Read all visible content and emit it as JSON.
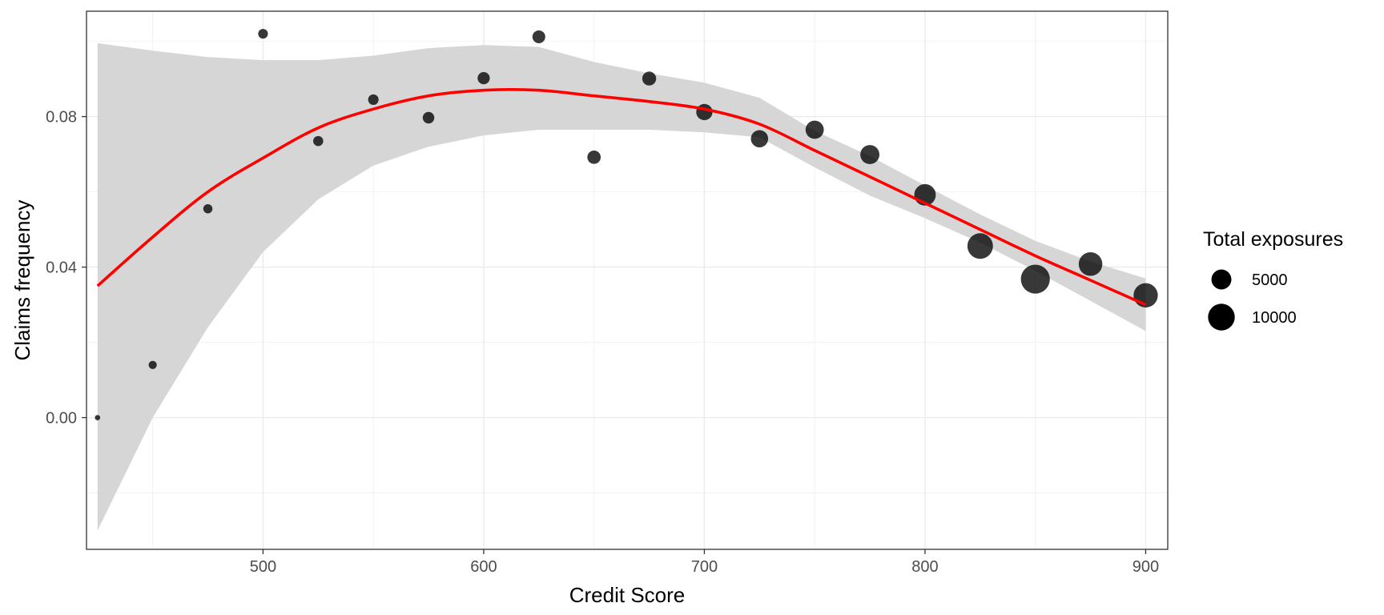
{
  "chart_data": {
    "type": "scatter",
    "title": "",
    "xlabel": "Credit Score",
    "ylabel": "Claims frequency",
    "xlim": [
      420,
      910
    ],
    "ylim": [
      -0.035,
      0.108
    ],
    "x_ticks": [
      500,
      600,
      700,
      800,
      900
    ],
    "x_tick_labels": [
      "500",
      "600",
      "700",
      "800",
      "900"
    ],
    "y_ticks": [
      0.0,
      0.04,
      0.08
    ],
    "y_tick_labels": [
      "0.00",
      "0.04",
      "0.08"
    ],
    "grid": true,
    "legend": {
      "title": "Total exposures",
      "position": "right",
      "entries": [
        {
          "label": "5000",
          "value": 5000
        },
        {
          "label": "10000",
          "value": 10000
        }
      ]
    },
    "points": [
      {
        "x": 425,
        "y": 0.0,
        "size": 60
      },
      {
        "x": 450,
        "y": 0.014,
        "size": 400
      },
      {
        "x": 475,
        "y": 0.0555,
        "size": 600
      },
      {
        "x": 500,
        "y": 0.102,
        "size": 700
      },
      {
        "x": 525,
        "y": 0.0735,
        "size": 800
      },
      {
        "x": 550,
        "y": 0.0845,
        "size": 900
      },
      {
        "x": 575,
        "y": 0.0797,
        "size": 1200
      },
      {
        "x": 600,
        "y": 0.0902,
        "size": 1400
      },
      {
        "x": 625,
        "y": 0.1012,
        "size": 1600
      },
      {
        "x": 650,
        "y": 0.0692,
        "size": 1800
      },
      {
        "x": 675,
        "y": 0.0901,
        "size": 2000
      },
      {
        "x": 700,
        "y": 0.0812,
        "size": 3000
      },
      {
        "x": 725,
        "y": 0.0741,
        "size": 3500
      },
      {
        "x": 750,
        "y": 0.0765,
        "size": 4000
      },
      {
        "x": 775,
        "y": 0.0699,
        "size": 4500
      },
      {
        "x": 800,
        "y": 0.0592,
        "size": 6000
      },
      {
        "x": 825,
        "y": 0.0456,
        "size": 9000
      },
      {
        "x": 850,
        "y": 0.0368,
        "size": 12000
      },
      {
        "x": 875,
        "y": 0.0408,
        "size": 7500
      },
      {
        "x": 900,
        "y": 0.0325,
        "size": 8000
      }
    ],
    "smooth_line": {
      "color": "#ff0000",
      "x": [
        425,
        450,
        475,
        500,
        525,
        550,
        575,
        600,
        625,
        650,
        675,
        700,
        725,
        750,
        775,
        800,
        825,
        850,
        875,
        900
      ],
      "y": [
        0.035,
        0.048,
        0.06,
        0.069,
        0.077,
        0.082,
        0.0855,
        0.087,
        0.087,
        0.0855,
        0.084,
        0.082,
        0.078,
        0.071,
        0.064,
        0.057,
        0.05,
        0.043,
        0.0365,
        0.03
      ]
    },
    "confidence_band": {
      "color": "#d4d4d4",
      "x": [
        425,
        450,
        475,
        500,
        525,
        550,
        575,
        600,
        625,
        650,
        675,
        700,
        725,
        750,
        775,
        800,
        825,
        850,
        875,
        900
      ],
      "lower": [
        -0.03,
        0.0,
        0.024,
        0.044,
        0.058,
        0.067,
        0.072,
        0.075,
        0.0765,
        0.0765,
        0.0765,
        0.0758,
        0.0745,
        0.0665,
        0.059,
        0.053,
        0.0465,
        0.039,
        0.031,
        0.023
      ],
      "upper": [
        0.0995,
        0.0975,
        0.0958,
        0.095,
        0.095,
        0.0962,
        0.0982,
        0.099,
        0.0985,
        0.0945,
        0.0915,
        0.089,
        0.085,
        0.0762,
        0.0695,
        0.0617,
        0.054,
        0.047,
        0.0415,
        0.037
      ]
    }
  }
}
